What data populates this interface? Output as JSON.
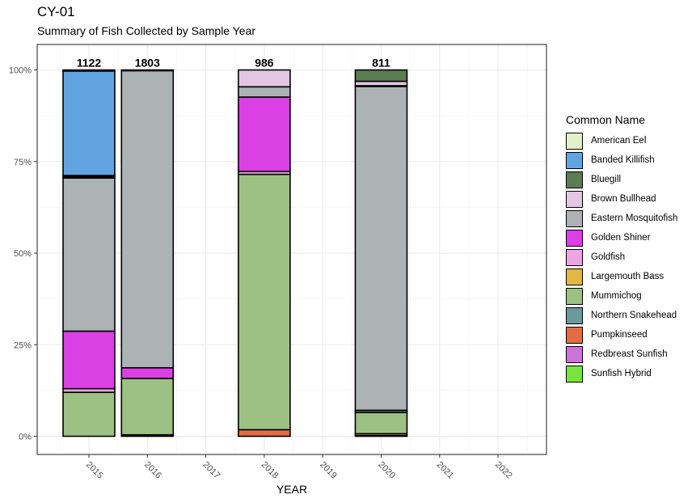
{
  "header": {
    "title": "CY-01",
    "subtitle": "Summary of Fish Collected by Sample Year"
  },
  "legend": {
    "title": "Common Name",
    "items": [
      {
        "label": "American Eel",
        "color": "#e3f0c8"
      },
      {
        "label": "Banded Killifish",
        "color": "#62a4e0"
      },
      {
        "label": "Bluegill",
        "color": "#5c7c54"
      },
      {
        "label": "Brown Bullhead",
        "color": "#e2c6e4"
      },
      {
        "label": "Eastern Mosquitofish",
        "color": "#adb3b5"
      },
      {
        "label": "Golden Shiner",
        "color": "#da40e4"
      },
      {
        "label": "Goldfish",
        "color": "#eca4e2"
      },
      {
        "label": "Largemouth Bass",
        "color": "#e3b744"
      },
      {
        "label": "Mummichog",
        "color": "#9dc083"
      },
      {
        "label": "Northern Snakehead",
        "color": "#6b9a98"
      },
      {
        "label": "Pumpkinseed",
        "color": "#e46c44"
      },
      {
        "label": "Redbreast Sunfish",
        "color": "#cb74d8"
      },
      {
        "label": "Sunfish Hybrid",
        "color": "#7ae43c"
      }
    ]
  },
  "chart_data": {
    "type": "bar",
    "stacked": true,
    "percent": true,
    "xlabel": "YEAR",
    "ylabel": "",
    "ylim": [
      0,
      1
    ],
    "y_ticks": [
      "0%",
      "25%",
      "50%",
      "75%",
      "100%"
    ],
    "x_ticks": [
      "2015",
      "2016",
      "2017",
      "2018",
      "2019",
      "2020",
      "2021",
      "2022"
    ],
    "grid": true,
    "legend_position": "right",
    "bars": [
      {
        "year": "2015",
        "total": "1122",
        "segments": [
          {
            "species": "Mummichog",
            "value": 0.12
          },
          {
            "species": "Goldfish",
            "value": 0.01
          },
          {
            "species": "Golden Shiner",
            "value": 0.157
          },
          {
            "species": "Eastern Mosquitofish",
            "value": 0.418
          },
          {
            "species": "Brown Bullhead",
            "value": 0.003
          },
          {
            "species": "Bluegill",
            "value": 0.004
          },
          {
            "species": "Banded Killifish",
            "value": 0.285
          },
          {
            "species": "American Eel",
            "value": 0.003
          }
        ]
      },
      {
        "year": "2016",
        "total": "1803",
        "segments": [
          {
            "species": "Pumpkinseed",
            "value": 0.002
          },
          {
            "species": "Largemouth Bass",
            "value": 0.002
          },
          {
            "species": "Mummichog",
            "value": 0.154
          },
          {
            "species": "Golden Shiner",
            "value": 0.029
          },
          {
            "species": "Eastern Mosquitofish",
            "value": 0.811
          },
          {
            "species": "Brown Bullhead",
            "value": 0.001
          },
          {
            "species": "Bluegill",
            "value": 0.001
          }
        ]
      },
      {
        "year": "2018",
        "total": "986",
        "segments": [
          {
            "species": "Pumpkinseed",
            "value": 0.018
          },
          {
            "species": "Mummichog",
            "value": 0.697
          },
          {
            "species": "Goldfish",
            "value": 0.008
          },
          {
            "species": "Golden Shiner",
            "value": 0.203
          },
          {
            "species": "Eastern Mosquitofish",
            "value": 0.028
          },
          {
            "species": "Brown Bullhead",
            "value": 0.046
          }
        ]
      },
      {
        "year": "2020",
        "total": "811",
        "segments": [
          {
            "species": "Sunfish Hybrid",
            "value": 0.002
          },
          {
            "species": "Largemouth Bass",
            "value": 0.005
          },
          {
            "species": "Mummichog",
            "value": 0.058
          },
          {
            "species": "Bluegill",
            "value": 0.006
          },
          {
            "species": "Eastern Mosquitofish",
            "value": 0.884
          },
          {
            "species": "Goldfish",
            "value": 0.002
          },
          {
            "species": "Brown Bullhead",
            "value": 0.012
          },
          {
            "species": "Bluegill",
            "value": 0.031
          }
        ]
      }
    ]
  }
}
